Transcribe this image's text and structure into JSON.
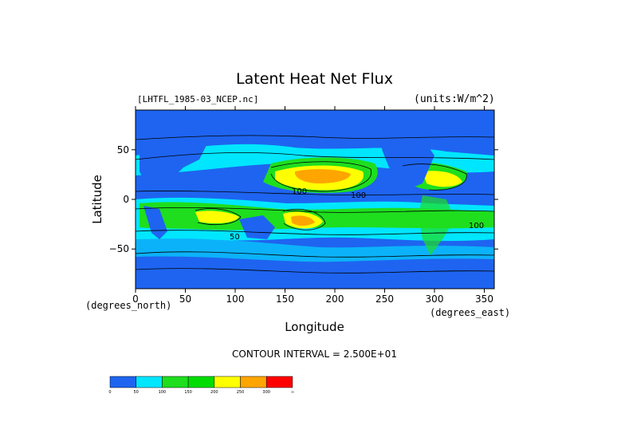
{
  "chart_data": {
    "type": "heatmap",
    "title": "Latent Heat Net Flux",
    "source_label": "[LHTFL_1985-03_NCEP.nc]",
    "units_label": "(units:W/m^2)",
    "xlabel": "Longitude",
    "xlabel_unit": "(degrees_east)",
    "ylabel": "Latitude",
    "ylabel_unit": "(degrees_north)",
    "xlim": [
      0,
      360
    ],
    "ylim": [
      -90,
      90
    ],
    "x_ticks": [
      "0",
      "50",
      "100",
      "150",
      "200",
      "250",
      "300",
      "350"
    ],
    "y_ticks": [
      "50",
      "0",
      "−50"
    ],
    "contour_interval_text": "CONTOUR INTERVAL = 2.500E+01",
    "contour_labels": [
      "100",
      "50"
    ],
    "colorbar": {
      "levels": [
        0,
        50,
        100,
        150,
        200,
        250,
        300
      ],
      "tick_labels": [
        "0",
        "50",
        "100",
        "150",
        "200",
        "250",
        "300",
        "∞"
      ],
      "colors": [
        "#1e64f0",
        "#00e6ff",
        "#1ede1e",
        "#00dc00",
        "#ffff00",
        "#ffa500",
        "#ff0000"
      ]
    }
  }
}
